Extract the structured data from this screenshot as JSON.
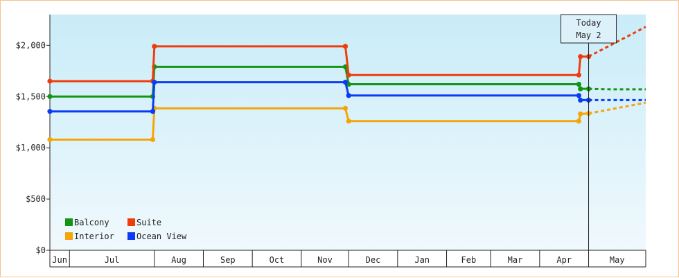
{
  "chart_data": {
    "type": "line",
    "y_axis": {
      "min": 0,
      "max": 2300,
      "ticks": [
        {
          "value": 0,
          "label": "$0"
        },
        {
          "value": 500,
          "label": "$500"
        },
        {
          "value": 1000,
          "label": "$1,000"
        },
        {
          "value": 1500,
          "label": "$1,500"
        },
        {
          "value": 2000,
          "label": "$2,000"
        }
      ]
    },
    "x_axis": {
      "start": "2023-06-01",
      "end": "2024-05-31",
      "months": [
        {
          "label": "Jun",
          "start": "2023-06-01"
        },
        {
          "label": "Jul",
          "start": "2023-06-13"
        },
        {
          "label": "Aug",
          "start": "2023-08-04"
        },
        {
          "label": "Sep",
          "start": "2023-09-03"
        },
        {
          "label": "Oct",
          "start": "2023-10-03"
        },
        {
          "label": "Nov",
          "start": "2023-11-02"
        },
        {
          "label": "Dec",
          "start": "2023-12-01"
        },
        {
          "label": "Jan",
          "start": "2023-12-31"
        },
        {
          "label": "Feb",
          "start": "2024-01-30"
        },
        {
          "label": "Mar",
          "start": "2024-02-26"
        },
        {
          "label": "Apr",
          "start": "2024-03-27"
        },
        {
          "label": "May",
          "start": "2024-04-26"
        }
      ]
    },
    "today": {
      "label_line1": "Today",
      "label_line2": "May 2",
      "date": "2024-04-26"
    },
    "series": [
      {
        "name": "Balcony",
        "color": "#149414",
        "points": [
          {
            "date": "2023-06-01",
            "value": 1500
          },
          {
            "date": "2023-08-03",
            "value": 1500
          },
          {
            "date": "2023-08-04",
            "value": 1790
          },
          {
            "date": "2023-11-29",
            "value": 1790
          },
          {
            "date": "2023-12-01",
            "value": 1620
          },
          {
            "date": "2024-04-20",
            "value": 1620
          },
          {
            "date": "2024-04-21",
            "value": 1575
          },
          {
            "date": "2024-04-26",
            "value": 1575
          }
        ],
        "forecast": [
          {
            "date": "2024-04-26",
            "value": 1575
          },
          {
            "date": "2024-05-10",
            "value": 1570
          },
          {
            "date": "2024-05-31",
            "value": 1570
          }
        ]
      },
      {
        "name": "Suite",
        "color": "#f03c0a",
        "points": [
          {
            "date": "2023-06-01",
            "value": 1650
          },
          {
            "date": "2023-08-03",
            "value": 1650
          },
          {
            "date": "2023-08-04",
            "value": 1990
          },
          {
            "date": "2023-11-29",
            "value": 1990
          },
          {
            "date": "2023-12-01",
            "value": 1710
          },
          {
            "date": "2024-04-20",
            "value": 1710
          },
          {
            "date": "2024-04-21",
            "value": 1890
          },
          {
            "date": "2024-04-26",
            "value": 1890
          }
        ],
        "forecast": [
          {
            "date": "2024-04-26",
            "value": 1890
          },
          {
            "date": "2024-05-31",
            "value": 2180
          }
        ]
      },
      {
        "name": "Interior",
        "color": "#f5a50a",
        "points": [
          {
            "date": "2023-06-01",
            "value": 1080
          },
          {
            "date": "2023-08-03",
            "value": 1080
          },
          {
            "date": "2023-08-04",
            "value": 1385
          },
          {
            "date": "2023-11-29",
            "value": 1385
          },
          {
            "date": "2023-12-01",
            "value": 1260
          },
          {
            "date": "2024-04-20",
            "value": 1260
          },
          {
            "date": "2024-04-21",
            "value": 1330
          },
          {
            "date": "2024-04-26",
            "value": 1335
          }
        ],
        "forecast": [
          {
            "date": "2024-04-26",
            "value": 1335
          },
          {
            "date": "2024-05-31",
            "value": 1440
          }
        ]
      },
      {
        "name": "Ocean View",
        "color": "#0a3cf5",
        "points": [
          {
            "date": "2023-06-01",
            "value": 1355
          },
          {
            "date": "2023-08-03",
            "value": 1355
          },
          {
            "date": "2023-08-04",
            "value": 1640
          },
          {
            "date": "2023-11-29",
            "value": 1640
          },
          {
            "date": "2023-12-01",
            "value": 1510
          },
          {
            "date": "2024-04-20",
            "value": 1510
          },
          {
            "date": "2024-04-21",
            "value": 1465
          },
          {
            "date": "2024-04-26",
            "value": 1465
          }
        ],
        "forecast": [
          {
            "date": "2024-04-26",
            "value": 1465
          },
          {
            "date": "2024-05-31",
            "value": 1465
          }
        ]
      }
    ],
    "legend_position": "bottom-left",
    "grid": false
  }
}
